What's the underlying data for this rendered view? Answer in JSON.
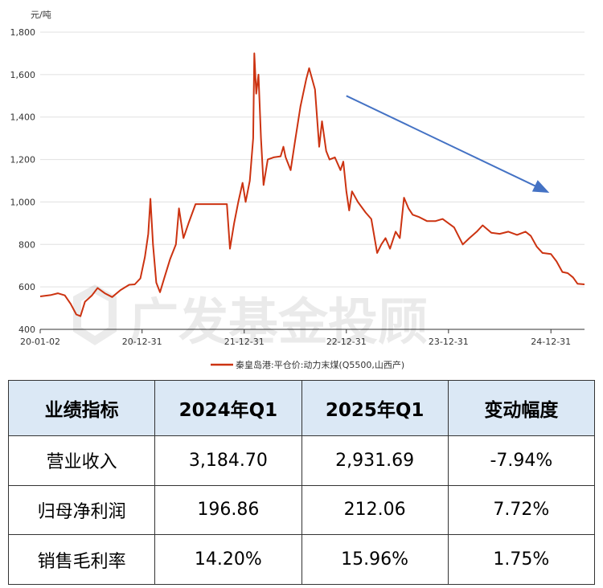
{
  "chart_data": {
    "type": "line",
    "y_unit": "元/吨",
    "ylim": [
      400,
      1800
    ],
    "y_ticks": [
      400,
      600,
      800,
      1000,
      1200,
      1400,
      1600,
      1800
    ],
    "y_tick_labels": [
      "400",
      "600",
      "800",
      "1,000",
      "1,200",
      "1,400",
      "1,600",
      "1,800"
    ],
    "x_range": [
      "2020-01-02",
      "2025-04-30"
    ],
    "x_ticks": [
      {
        "date": "2020-01-02",
        "label": "20-01-02"
      },
      {
        "date": "2020-12-31",
        "label": "20-12-31"
      },
      {
        "date": "2021-12-31",
        "label": "21-12-31"
      },
      {
        "date": "2022-12-31",
        "label": "22-12-31"
      },
      {
        "date": "2023-12-31",
        "label": "23-12-31"
      },
      {
        "date": "2024-12-31",
        "label": "24-12-31"
      }
    ],
    "grid": "horizontal",
    "legend_position": "bottom",
    "series": [
      {
        "name": "秦皇岛港:平仓价:动力末煤(Q5500,山西产)",
        "color": "#cc3311",
        "points": [
          [
            "2020-01-02",
            555
          ],
          [
            "2020-02-10",
            562
          ],
          [
            "2020-03-05",
            570
          ],
          [
            "2020-03-30",
            560
          ],
          [
            "2020-04-20",
            520
          ],
          [
            "2020-05-10",
            470
          ],
          [
            "2020-05-25",
            462
          ],
          [
            "2020-06-10",
            530
          ],
          [
            "2020-07-05",
            560
          ],
          [
            "2020-07-25",
            595
          ],
          [
            "2020-08-20",
            570
          ],
          [
            "2020-09-15",
            552
          ],
          [
            "2020-10-15",
            585
          ],
          [
            "2020-11-15",
            610
          ],
          [
            "2020-12-05",
            612
          ],
          [
            "2020-12-25",
            640
          ],
          [
            "2021-01-10",
            740
          ],
          [
            "2021-01-22",
            850
          ],
          [
            "2021-01-30",
            1015
          ],
          [
            "2021-02-08",
            800
          ],
          [
            "2021-02-20",
            620
          ],
          [
            "2021-03-05",
            575
          ],
          [
            "2021-03-20",
            640
          ],
          [
            "2021-04-10",
            730
          ],
          [
            "2021-05-01",
            800
          ],
          [
            "2021-05-12",
            970
          ],
          [
            "2021-05-28",
            830
          ],
          [
            "2021-06-15",
            900
          ],
          [
            "2021-07-10",
            990
          ],
          [
            "2021-08-10",
            990
          ],
          [
            "2021-09-10",
            990
          ],
          [
            "2021-10-10",
            990
          ],
          [
            "2021-10-30",
            990
          ],
          [
            "2021-11-10",
            780
          ],
          [
            "2021-11-25",
            900
          ],
          [
            "2021-12-10",
            1000
          ],
          [
            "2021-12-25",
            1090
          ],
          [
            "2022-01-05",
            1000
          ],
          [
            "2022-01-20",
            1100
          ],
          [
            "2022-02-01",
            1300
          ],
          [
            "2022-02-05",
            1700
          ],
          [
            "2022-02-12",
            1510
          ],
          [
            "2022-02-20",
            1600
          ],
          [
            "2022-03-01",
            1300
          ],
          [
            "2022-03-10",
            1080
          ],
          [
            "2022-03-25",
            1200
          ],
          [
            "2022-04-15",
            1210
          ],
          [
            "2022-05-10",
            1215
          ],
          [
            "2022-05-20",
            1260
          ],
          [
            "2022-05-28",
            1210
          ],
          [
            "2022-06-15",
            1150
          ],
          [
            "2022-07-01",
            1290
          ],
          [
            "2022-07-20",
            1450
          ],
          [
            "2022-08-10",
            1580
          ],
          [
            "2022-08-20",
            1630
          ],
          [
            "2022-09-10",
            1530
          ],
          [
            "2022-09-25",
            1260
          ],
          [
            "2022-10-05",
            1380
          ],
          [
            "2022-10-20",
            1240
          ],
          [
            "2022-11-01",
            1200
          ],
          [
            "2022-11-20",
            1210
          ],
          [
            "2022-12-10",
            1150
          ],
          [
            "2022-12-20",
            1190
          ],
          [
            "2022-12-31",
            1050
          ],
          [
            "2023-01-10",
            960
          ],
          [
            "2023-01-20",
            1050
          ],
          [
            "2023-02-10",
            1000
          ],
          [
            "2023-03-10",
            950
          ],
          [
            "2023-03-30",
            920
          ],
          [
            "2023-04-20",
            760
          ],
          [
            "2023-05-05",
            800
          ],
          [
            "2023-05-20",
            830
          ],
          [
            "2023-06-05",
            780
          ],
          [
            "2023-06-25",
            860
          ],
          [
            "2023-07-10",
            830
          ],
          [
            "2023-07-25",
            1020
          ],
          [
            "2023-08-10",
            970
          ],
          [
            "2023-08-25",
            940
          ],
          [
            "2023-09-15",
            930
          ],
          [
            "2023-10-15",
            910
          ],
          [
            "2023-11-15",
            910
          ],
          [
            "2023-12-10",
            920
          ],
          [
            "2023-12-31",
            900
          ],
          [
            "2024-01-20",
            880
          ],
          [
            "2024-02-20",
            800
          ],
          [
            "2024-03-15",
            830
          ],
          [
            "2024-04-10",
            860
          ],
          [
            "2024-05-01",
            890
          ],
          [
            "2024-06-01",
            855
          ],
          [
            "2024-07-01",
            850
          ],
          [
            "2024-08-01",
            860
          ],
          [
            "2024-09-01",
            845
          ],
          [
            "2024-10-01",
            860
          ],
          [
            "2024-10-20",
            840
          ],
          [
            "2024-11-10",
            790
          ],
          [
            "2024-12-01",
            760
          ],
          [
            "2024-12-31",
            755
          ],
          [
            "2025-01-20",
            720
          ],
          [
            "2025-02-10",
            670
          ],
          [
            "2025-03-01",
            665
          ],
          [
            "2025-03-20",
            645
          ],
          [
            "2025-04-05",
            615
          ],
          [
            "2025-04-30",
            612
          ]
        ]
      }
    ],
    "annotation": {
      "type": "arrow",
      "from": [
        "2022-12-31",
        1500
      ],
      "to": [
        "2024-12-15",
        1050
      ],
      "color": "#4472c4"
    }
  },
  "watermark": "广发基金投顾",
  "table": {
    "headers": [
      "业绩指标",
      "2024年Q1",
      "2025年Q1",
      "变动幅度"
    ],
    "rows": [
      [
        "营业收入",
        "3,184.70",
        "2,931.69",
        "-7.94%"
      ],
      [
        "归母净利润",
        "196.86",
        "212.06",
        "7.72%"
      ],
      [
        "销售毛利率",
        "14.20%",
        "15.96%",
        "1.75%"
      ]
    ]
  }
}
